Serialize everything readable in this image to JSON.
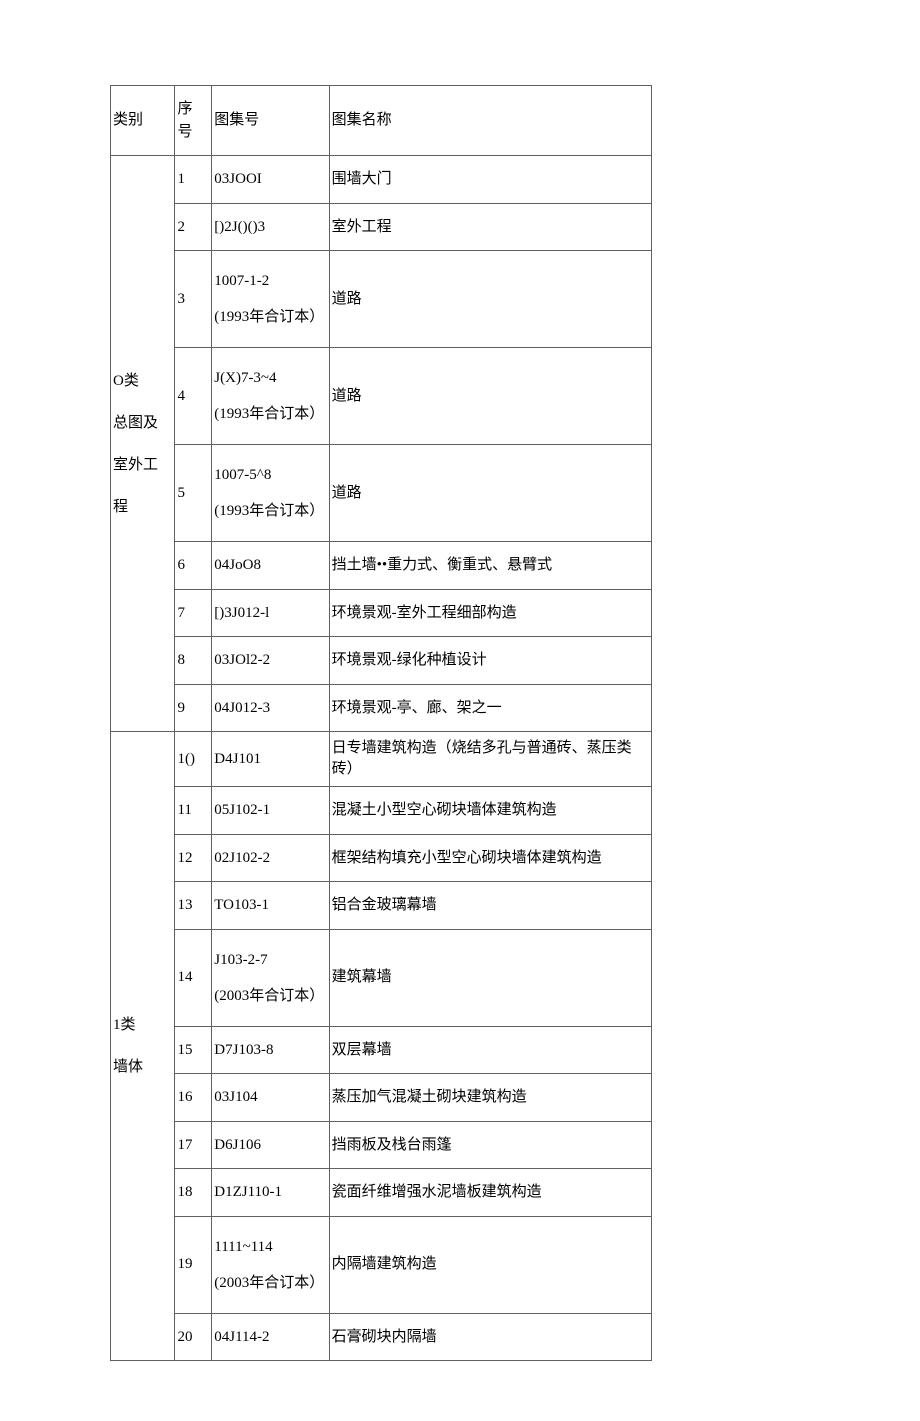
{
  "header": {
    "col1": "类别",
    "col2": "序号",
    "col3": "图集号",
    "col4": "图集名称"
  },
  "groups": [
    {
      "category": "O类\n总图及\n室外工程",
      "rows": [
        {
          "seq": "1",
          "code": "03JOOI",
          "name": "围墙大门",
          "multi": false
        },
        {
          "seq": "2",
          "code": "[)2J()()3",
          "name": "室外工程",
          "multi": false
        },
        {
          "seq": "3",
          "code": "1007-1-2\n(1993年合订本）",
          "name": "道路",
          "multi": true
        },
        {
          "seq": "4",
          "code": "J(X)7-3~4\n(1993年合订本）",
          "name": "道路",
          "multi": true
        },
        {
          "seq": "5",
          "code": "1007-5^8\n(1993年合订本）",
          "name": "道路",
          "multi": true
        },
        {
          "seq": "6",
          "code": "04JoO8",
          "name": "挡土墙••重力式、衡重式、悬臂式",
          "multi": false
        },
        {
          "seq": "7",
          "code": "[)3J012-l",
          "name": "环境景观-室外工程细部构造",
          "multi": false
        },
        {
          "seq": "8",
          "code": "03JOl2-2",
          "name": "环境景观-绿化种植设计",
          "multi": false
        },
        {
          "seq": "9",
          "code": "04J012-3",
          "name": "环境景观-亭、廊、架之一",
          "multi": false
        }
      ]
    },
    {
      "category": "1类\n墙体",
      "rows": [
        {
          "seq": "1()",
          "code": "D4J101",
          "name": "日专墙建筑构造（烧结多孔与普通砖、蒸压类砖）",
          "multi": false,
          "tight": true
        },
        {
          "seq": "11",
          "code": "05J102-1",
          "name": "混凝土小型空心砌块墙体建筑构造",
          "multi": false
        },
        {
          "seq": "12",
          "code": "02J102-2",
          "name": "框架结构填充小型空心砌块墙体建筑构造",
          "multi": false
        },
        {
          "seq": "13",
          "code": "TO103-1",
          "name": "铝合金玻璃幕墙",
          "multi": false
        },
        {
          "seq": "14",
          "code": "J103-2-7\n(2003年合订本）",
          "name": "建筑幕墙",
          "multi": true
        },
        {
          "seq": "15",
          "code": "D7J103-8",
          "name": "双层幕墙",
          "multi": false
        },
        {
          "seq": "16",
          "code": "03J104",
          "name": "蒸压加气混凝土砌块建筑构造",
          "multi": false
        },
        {
          "seq": "17",
          "code": "D6J106",
          "name": "挡雨板及栈台雨篷",
          "multi": false
        },
        {
          "seq": "18",
          "code": "D1ZJ110-1",
          "name": "瓷面纤维增强水泥墙板建筑构造",
          "multi": false
        },
        {
          "seq": "19",
          "code": "1111~114\n(2003年合订本）",
          "name": "内隔墙建筑构造",
          "multi": true
        },
        {
          "seq": "20",
          "code": "04J114-2",
          "name": "石膏砌块内隔墙",
          "multi": false
        }
      ]
    }
  ]
}
